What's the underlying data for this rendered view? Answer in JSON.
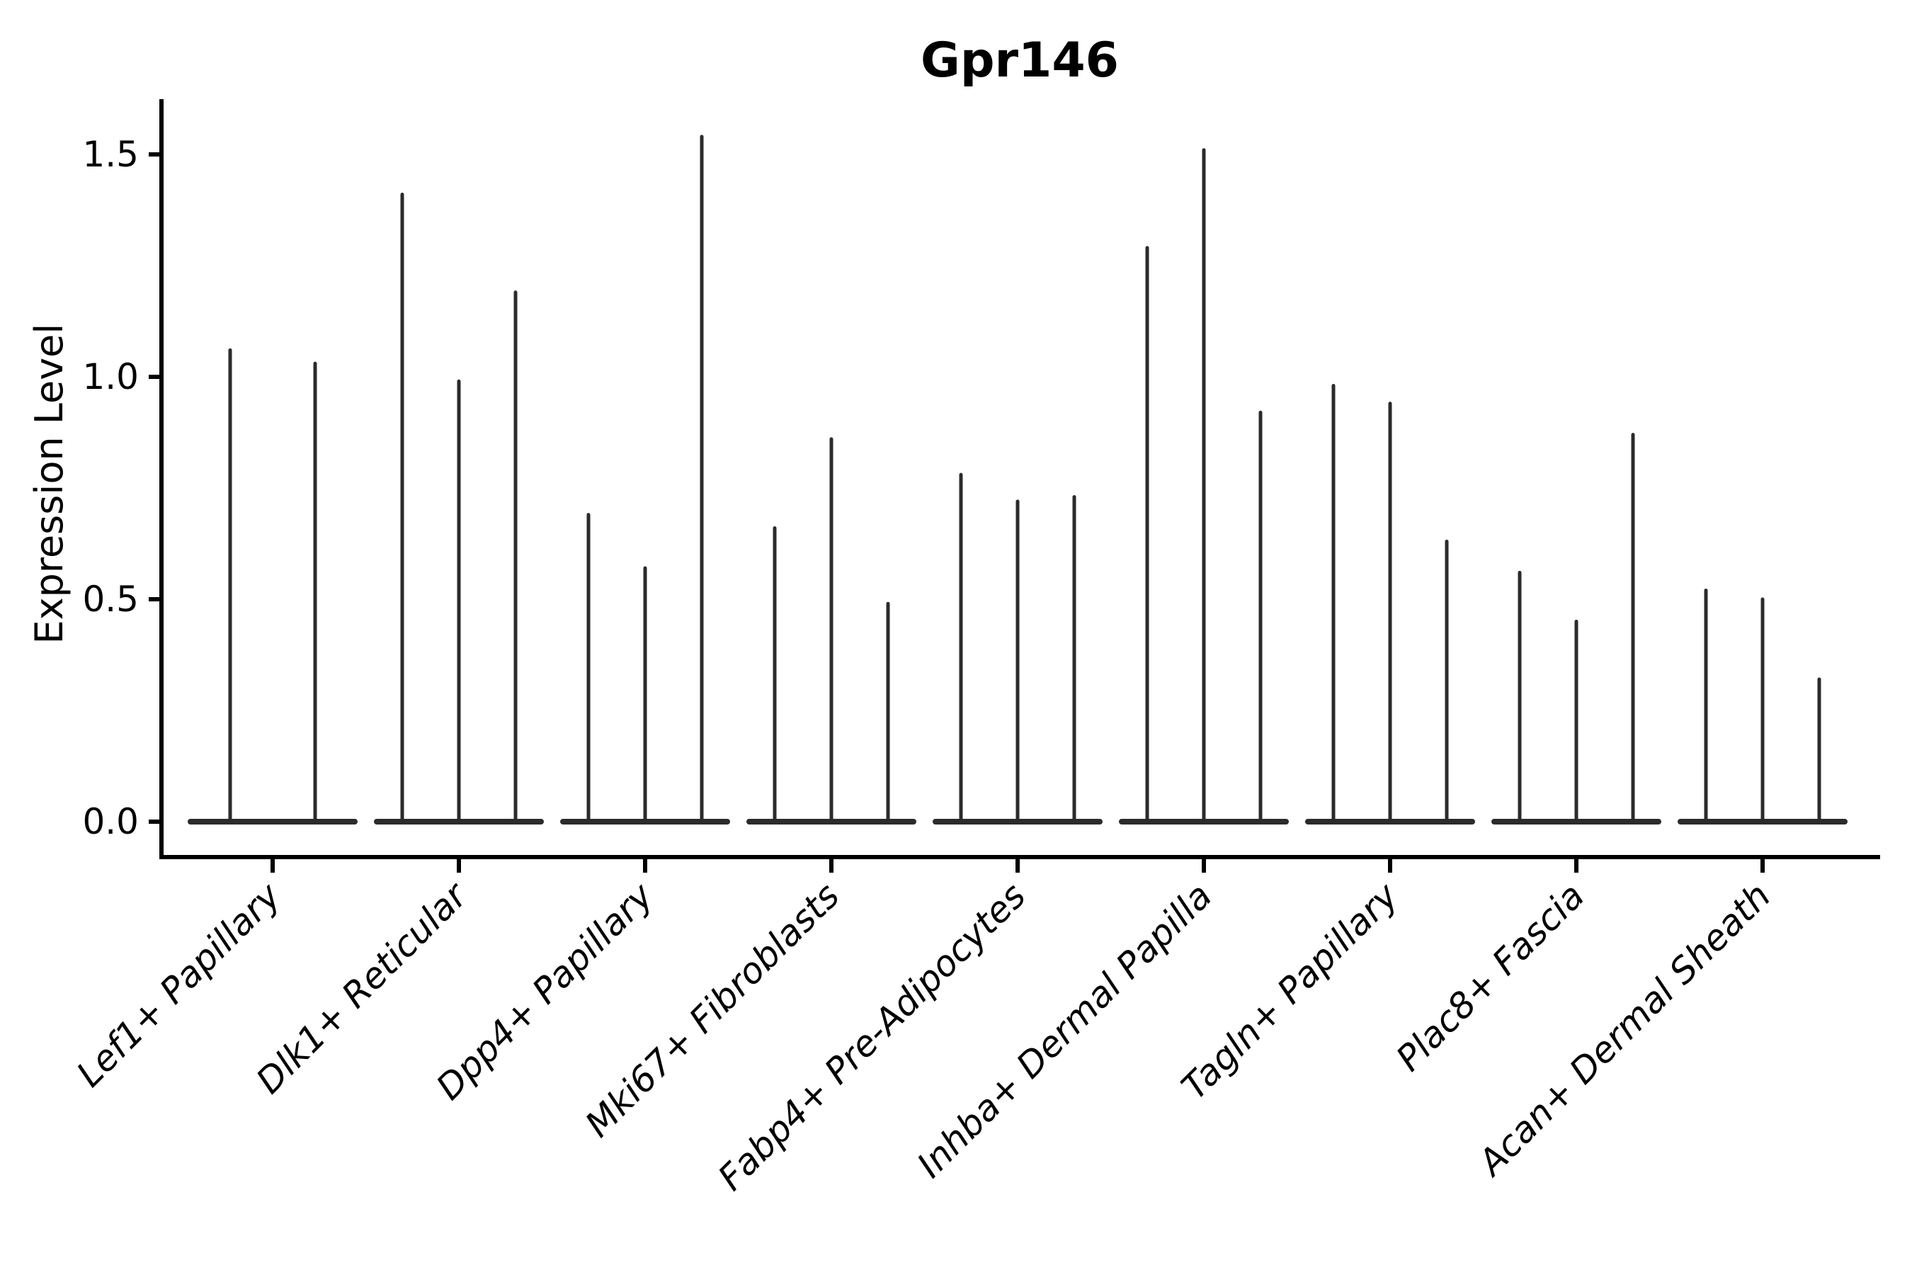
{
  "figure": {
    "title": "Gpr146",
    "background_color": "#ffffff",
    "axis_color": "#000000",
    "violin_color": "#2b2b2b"
  },
  "chart_data": {
    "type": "violin",
    "title": "Gpr146",
    "xlabel": "",
    "ylabel": "Expression Level",
    "ylim": [
      0,
      1.6
    ],
    "yticks": [
      "0.0",
      "0.5",
      "1.0",
      "1.5"
    ],
    "grid": false,
    "legend_position": "none",
    "x_tick_rotation": 45,
    "categories": [
      "Lef1+ Papillary",
      "Dlk1+ Reticular",
      "Dpp4+ Papillary",
      "Mki67+ Fibroblasts",
      "Fabp4+ Pre-Adipocytes",
      "Inhba+ Dermal Papilla",
      "Tagln+ Papillary",
      "Plac8+ Fascia",
      "Acan+ Dermal Sheath"
    ],
    "groups": [
      {
        "label": "Lef1+ Papillary",
        "violin_peak_expression": [
          1.06,
          1.03
        ]
      },
      {
        "label": "Dlk1+ Reticular",
        "violin_peak_expression": [
          1.41,
          0.99,
          1.19
        ]
      },
      {
        "label": "Dpp4+ Papillary",
        "violin_peak_expression": [
          0.69,
          0.57,
          1.54
        ]
      },
      {
        "label": "Mki67+ Fibroblasts",
        "violin_peak_expression": [
          0.66,
          0.86,
          0.49
        ]
      },
      {
        "label": "Fabp4+ Pre-Adipocytes",
        "violin_peak_expression": [
          0.78,
          0.72,
          0.73
        ]
      },
      {
        "label": "Inhba+ Dermal Papilla",
        "violin_peak_expression": [
          1.29,
          1.51,
          0.92
        ]
      },
      {
        "label": "Tagln+ Papillary",
        "violin_peak_expression": [
          0.98,
          0.94,
          0.63
        ]
      },
      {
        "label": "Plac8+ Fascia",
        "violin_peak_expression": [
          0.56,
          0.45,
          0.87
        ]
      },
      {
        "label": "Acan+ Dermal Sheath",
        "violin_peak_expression": [
          0.52,
          0.5,
          0.32
        ]
      }
    ],
    "violins_baseline_value": 0.0
  }
}
